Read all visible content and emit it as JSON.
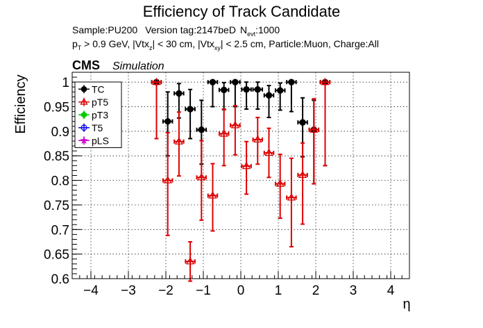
{
  "chart_data": {
    "type": "scatter",
    "title": "Efficiency of Track Candidate",
    "info_line1": {
      "sample": "Sample:PU200",
      "version": "Version tag:2147beD",
      "nevt_label": "N",
      "nevt_sub": "evt",
      "nevt_value": ":1000"
    },
    "info_line2": {
      "pt_p": "p",
      "pt_sub": "T",
      "pt_cut": " > 0.9 GeV, |Vtx",
      "vtxz_sub": "z",
      "vtxz_cut": "| < 30 cm, |Vtx",
      "vtxxy_sub": "xy",
      "vtxxy_cut": "| < 2.5 cm, Particle:Muon, Charge:All"
    },
    "cms_label": "CMS",
    "simulation_label": "Simulation",
    "xlabel": "η",
    "ylabel": "Efficiency",
    "xlim": [
      -4.5,
      4.5
    ],
    "ylim": [
      0.6,
      1.02
    ],
    "x_ticks": [
      "−4",
      "−3",
      "−2",
      "−1",
      "0",
      "1",
      "2",
      "3",
      "4"
    ],
    "y_ticks": [
      "0.6",
      "0.65",
      "0.7",
      "0.75",
      "0.8",
      "0.85",
      "0.9",
      "0.95",
      "1"
    ],
    "grid": true,
    "legend_position": "top-left",
    "series": [
      {
        "name": "TC",
        "color": "#000000",
        "marker": "circle-filled",
        "points": [
          {
            "x": -2.25,
            "y": 1.0,
            "xerr": 0.125,
            "ylo": 0.0,
            "yhi": 0.0
          },
          {
            "x": -1.95,
            "y": 0.92,
            "xerr": 0.125,
            "ylo": 0.07,
            "yhi": 0.06
          },
          {
            "x": -1.65,
            "y": 0.977,
            "xerr": 0.125,
            "ylo": 0.05,
            "yhi": 0.02
          },
          {
            "x": -1.35,
            "y": 0.945,
            "xerr": 0.125,
            "ylo": 0.06,
            "yhi": 0.04
          },
          {
            "x": -1.05,
            "y": 0.903,
            "xerr": 0.125,
            "ylo": 0.07,
            "yhi": 0.06
          },
          {
            "x": -0.75,
            "y": 1.0,
            "xerr": 0.125,
            "ylo": 0.05,
            "yhi": 0.0
          },
          {
            "x": -0.45,
            "y": 0.984,
            "xerr": 0.125,
            "ylo": 0.04,
            "yhi": 0.015
          },
          {
            "x": -0.15,
            "y": 1.0,
            "xerr": 0.125,
            "ylo": 0.05,
            "yhi": 0.0
          },
          {
            "x": 0.15,
            "y": 0.985,
            "xerr": 0.125,
            "ylo": 0.04,
            "yhi": 0.015
          },
          {
            "x": 0.45,
            "y": 0.985,
            "xerr": 0.125,
            "ylo": 0.04,
            "yhi": 0.015
          },
          {
            "x": 0.75,
            "y": 0.973,
            "xerr": 0.125,
            "ylo": 0.045,
            "yhi": 0.02
          },
          {
            "x": 1.05,
            "y": 0.983,
            "xerr": 0.125,
            "ylo": 0.04,
            "yhi": 0.015
          },
          {
            "x": 1.35,
            "y": 1.0,
            "xerr": 0.125,
            "ylo": 0.06,
            "yhi": 0.0
          },
          {
            "x": 1.65,
            "y": 0.918,
            "xerr": 0.125,
            "ylo": 0.07,
            "yhi": 0.05
          },
          {
            "x": 1.95,
            "y": 0.903,
            "xerr": 0.125,
            "ylo": 0.11,
            "yhi": 0.06
          },
          {
            "x": 2.25,
            "y": 1.0,
            "xerr": 0.125,
            "ylo": 0.17,
            "yhi": 0.0
          }
        ]
      },
      {
        "name": "pT5",
        "color": "#dd0000",
        "marker": "triangle-open",
        "points": [
          {
            "x": -2.25,
            "y": 1.0,
            "xerr": 0.125,
            "ylo": 0.115,
            "yhi": 0.0
          },
          {
            "x": -1.95,
            "y": 0.8,
            "xerr": 0.125,
            "ylo": 0.112,
            "yhi": 0.097
          },
          {
            "x": -1.65,
            "y": 0.879,
            "xerr": 0.125,
            "ylo": 0.07,
            "yhi": 0.06
          },
          {
            "x": -1.35,
            "y": 0.635,
            "xerr": 0.125,
            "ylo": 0.04,
            "yhi": 0.04
          },
          {
            "x": -1.05,
            "y": 0.806,
            "xerr": 0.125,
            "ylo": 0.087,
            "yhi": 0.075
          },
          {
            "x": -0.75,
            "y": 0.769,
            "xerr": 0.125,
            "ylo": 0.072,
            "yhi": 0.065
          },
          {
            "x": -0.45,
            "y": 0.895,
            "xerr": 0.125,
            "ylo": 0.065,
            "yhi": 0.05
          },
          {
            "x": -0.15,
            "y": 0.912,
            "xerr": 0.125,
            "ylo": 0.06,
            "yhi": 0.04
          },
          {
            "x": 0.15,
            "y": 0.829,
            "xerr": 0.125,
            "ylo": 0.057,
            "yhi": 0.05
          },
          {
            "x": 0.45,
            "y": 0.883,
            "xerr": 0.125,
            "ylo": 0.05,
            "yhi": 0.045
          },
          {
            "x": 0.75,
            "y": 0.856,
            "xerr": 0.125,
            "ylo": 0.05,
            "yhi": 0.05
          },
          {
            "x": 1.05,
            "y": 0.793,
            "xerr": 0.125,
            "ylo": 0.07,
            "yhi": 0.06
          },
          {
            "x": 1.35,
            "y": 0.765,
            "xerr": 0.125,
            "ylo": 0.1,
            "yhi": 0.08
          },
          {
            "x": 1.65,
            "y": 0.811,
            "xerr": 0.125,
            "ylo": 0.1,
            "yhi": 0.065
          },
          {
            "x": 1.95,
            "y": 0.903,
            "xerr": 0.125,
            "ylo": 0.11,
            "yhi": 0.063
          },
          {
            "x": 2.25,
            "y": 1.0,
            "xerr": 0.125,
            "ylo": 0.17,
            "yhi": 0.0
          }
        ]
      },
      {
        "name": "pT3",
        "color": "#00cc00",
        "marker": "cross-filled",
        "points": []
      },
      {
        "name": "T5",
        "color": "#0000ee",
        "marker": "circle-open",
        "points": []
      },
      {
        "name": "pLS",
        "color": "#cc00cc",
        "marker": "star-open",
        "points": []
      }
    ]
  }
}
